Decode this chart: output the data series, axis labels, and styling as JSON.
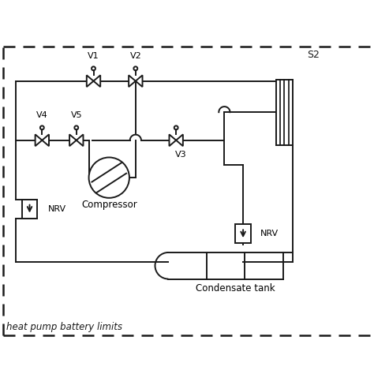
{
  "bg_color": "#ffffff",
  "line_color": "#1a1a1a",
  "line_width": 1.4,
  "s2_label": "S2",
  "condensate_tank_label": "Condensate tank",
  "compressor_label": "Compressor",
  "nrv_label": "NRV",
  "valve_labels": [
    "V1",
    "V2",
    "V3",
    "V4",
    "V5"
  ],
  "bottom_text": "heat pump battery limits",
  "figsize": [
    4.74,
    4.74
  ],
  "dpi": 100
}
